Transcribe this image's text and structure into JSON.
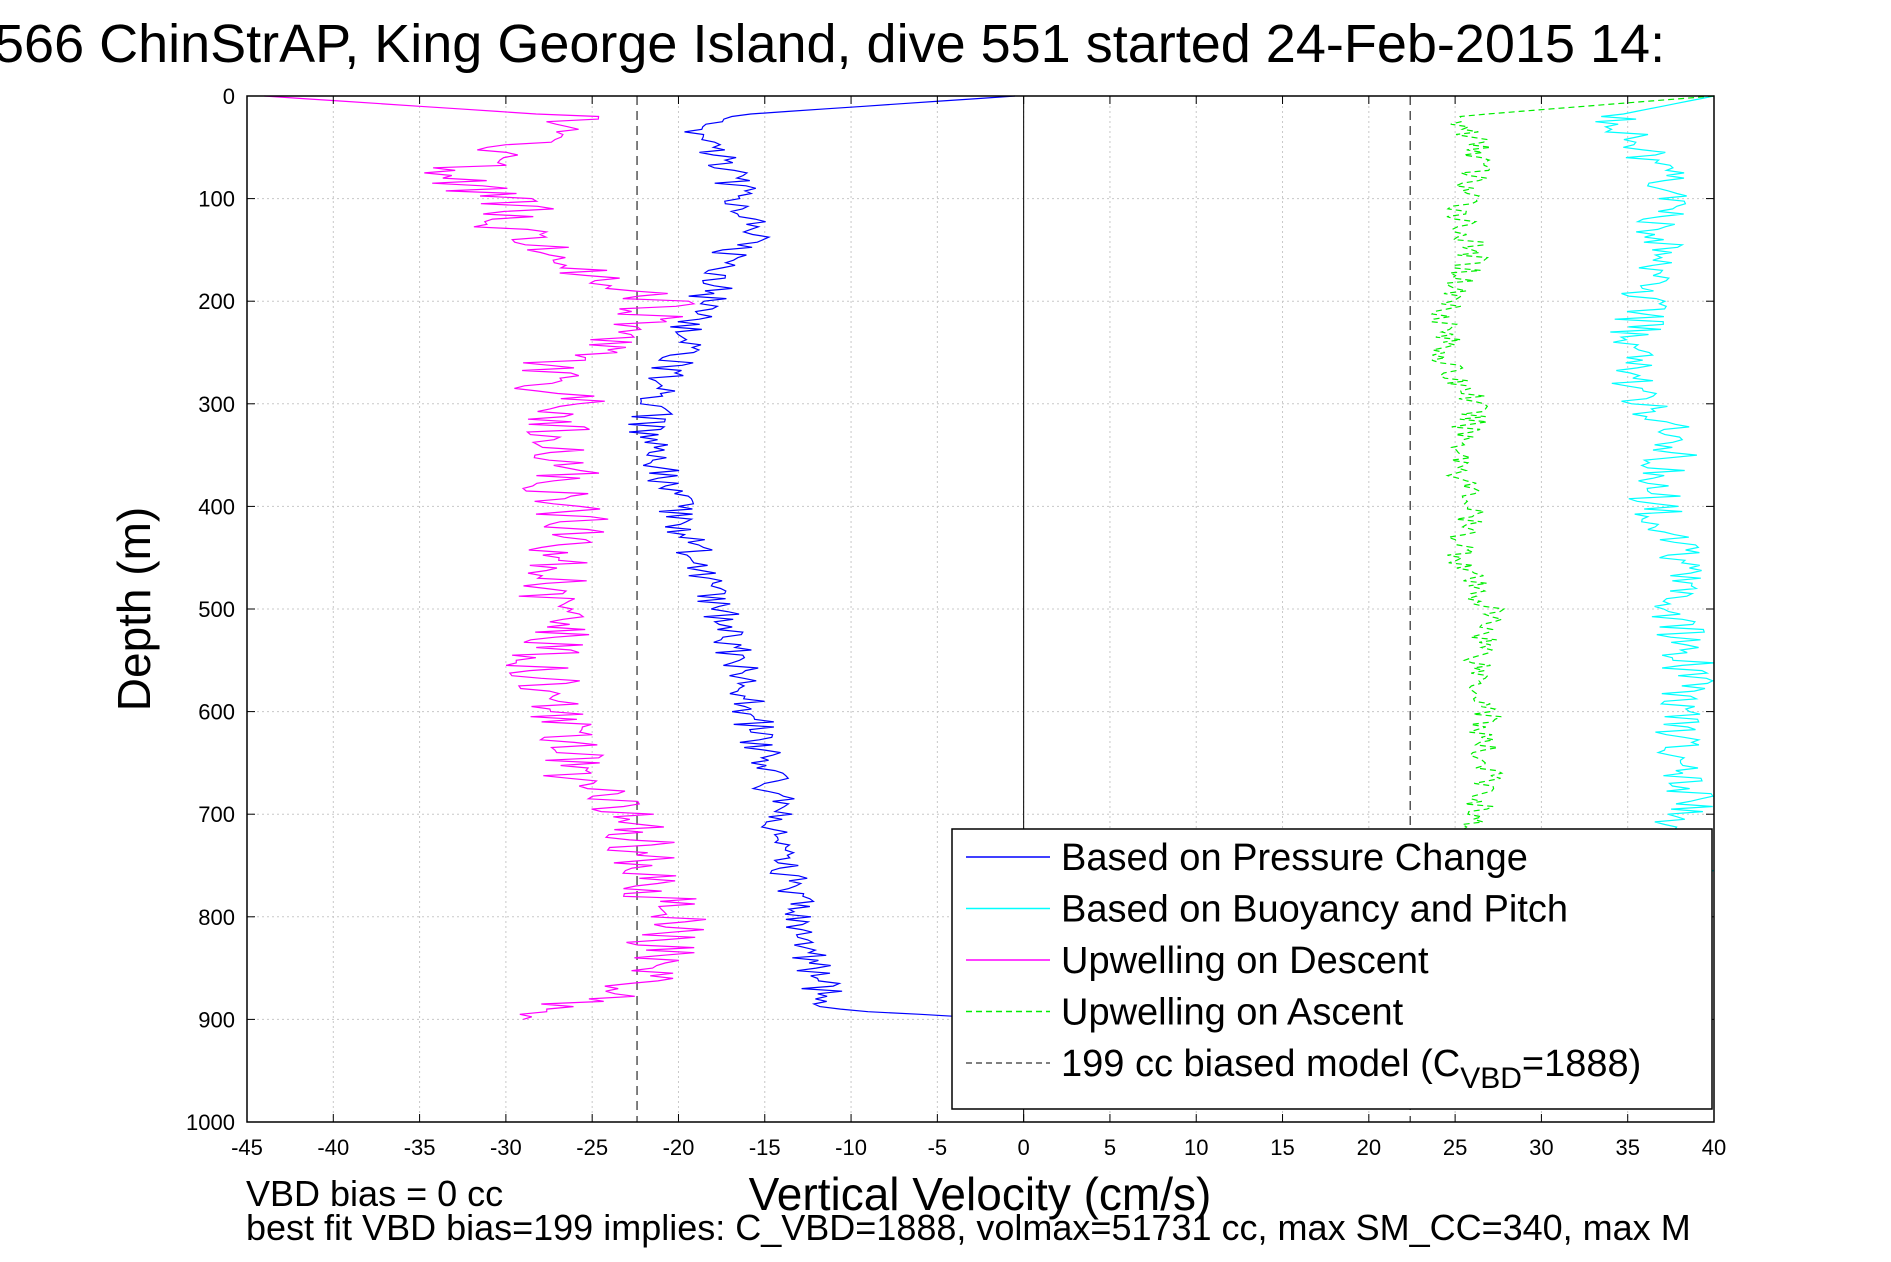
{
  "chart_data": {
    "type": "line",
    "title": "566 ChinStrAP, King George Island, dive 551 started 24-Feb-2015 14:",
    "xlabel": "Vertical Velocity (cm/s)",
    "ylabel": "Depth (m)",
    "xlim": [
      -45,
      40
    ],
    "ylim": [
      0,
      1000
    ],
    "y_reversed": true,
    "grid": true,
    "x_ticks": [
      -45,
      -40,
      -35,
      -30,
      -25,
      -20,
      -15,
      -10,
      -5,
      0,
      5,
      10,
      15,
      20,
      25,
      30,
      35,
      40
    ],
    "y_ticks": [
      0,
      100,
      200,
      300,
      400,
      500,
      600,
      700,
      800,
      900,
      1000
    ],
    "legend_position": "bottom-right",
    "series": [
      {
        "name": "Based on Pressure Change",
        "color": "#0000ff",
        "style": "solid",
        "x": [
          -0.5,
          -18,
          -19,
          -17.5,
          -17,
          -16.5,
          -16,
          -15,
          -17,
          -17.5,
          -18,
          -19,
          -19.5,
          -20,
          -20.5,
          -21,
          -21.5,
          -22,
          -21.5,
          -21,
          -20.5,
          -20,
          -19.5,
          -19,
          -18.5,
          -18,
          -17.5,
          -17,
          -16.5,
          -16,
          -15.5,
          -15,
          -14.5,
          -14,
          -14,
          -13.5,
          -13.5,
          -13,
          -13,
          -12.5,
          -12,
          -11.5,
          -11,
          -1
        ],
        "y": [
          0,
          20,
          40,
          60,
          80,
          95,
          110,
          130,
          150,
          170,
          190,
          210,
          230,
          250,
          270,
          290,
          310,
          330,
          350,
          370,
          390,
          410,
          430,
          450,
          470,
          490,
          510,
          530,
          560,
          590,
          620,
          650,
          680,
          710,
          740,
          760,
          780,
          800,
          820,
          840,
          860,
          875,
          890,
          900
        ]
      },
      {
        "name": "Based on Buoyancy and Pitch",
        "color": "#00ffff",
        "style": "solid",
        "x": [
          40,
          34,
          36,
          37,
          37.5,
          37,
          36.5,
          36,
          35.5,
          35.5,
          35,
          36,
          37.5,
          37.5,
          36.5,
          36.5,
          37,
          38,
          38.5,
          38,
          38,
          38.5,
          38.5,
          38,
          38,
          38.5,
          38.5,
          38,
          38.5,
          39
        ],
        "y": [
          0,
          20,
          50,
          80,
          100,
          130,
          160,
          190,
          220,
          250,
          280,
          300,
          320,
          350,
          380,
          400,
          420,
          440,
          460,
          490,
          520,
          550,
          580,
          610,
          640,
          670,
          690,
          710,
          740,
          760
        ]
      },
      {
        "name": "Upwelling on Descent",
        "color": "#ff00ff",
        "style": "solid",
        "x": [
          -44,
          -26,
          -28,
          -31,
          -33,
          -32,
          -29,
          -30,
          -27,
          -25,
          -23,
          -21,
          -22,
          -24,
          -27,
          -28,
          -26,
          -27,
          -28,
          -26,
          -27,
          -26.5,
          -26,
          -27,
          -26.5,
          -27,
          -28,
          -27,
          -27.5,
          -28,
          -27,
          -26.5,
          -27,
          -26,
          -26,
          -24.5,
          -23.5,
          -22,
          -22,
          -21.5,
          -21,
          -20.5,
          -21,
          -21,
          -29
        ],
        "y": [
          0,
          20,
          40,
          60,
          75,
          90,
          110,
          130,
          150,
          170,
          190,
          200,
          220,
          240,
          260,
          280,
          300,
          320,
          340,
          360,
          380,
          400,
          420,
          440,
          460,
          480,
          500,
          520,
          540,
          560,
          580,
          600,
          620,
          640,
          660,
          680,
          700,
          720,
          740,
          760,
          780,
          800,
          830,
          860,
          900
        ]
      },
      {
        "name": "Upwelling on Ascent",
        "color": "#00ee00",
        "style": "dashed",
        "x": [
          40,
          25,
          26,
          26.5,
          26,
          25.5,
          25.5,
          26,
          25,
          24.5,
          24.5,
          24.5,
          26,
          26,
          25.5,
          25.5,
          26,
          25.5,
          25.5,
          26,
          27,
          27,
          26.5,
          26.5,
          27,
          26.5,
          26.5,
          27,
          26.5,
          26.5,
          25.5
        ],
        "y": [
          0,
          20,
          40,
          60,
          80,
          100,
          130,
          160,
          190,
          220,
          250,
          270,
          290,
          310,
          340,
          370,
          400,
          420,
          450,
          480,
          500,
          520,
          550,
          580,
          600,
          620,
          640,
          660,
          680,
          700,
          715
        ]
      },
      {
        "name": "199 cc biased model (C_VBD=1888)",
        "color": "#555555",
        "style": "dashed",
        "x": [
          -22.4,
          -22.4
        ],
        "y": [
          0,
          1000
        ]
      }
    ],
    "model_lines_x": [
      -22.4,
      22.4
    ],
    "zero_line_x": 0,
    "legend": [
      {
        "label": "Based on Pressure Change",
        "color": "#0000ff",
        "style": "solid"
      },
      {
        "label": "Based on Buoyancy and Pitch",
        "color": "#00ffff",
        "style": "solid"
      },
      {
        "label": "Upwelling on Descent",
        "color": "#ff00ff",
        "style": "solid"
      },
      {
        "label": "Upwelling on Ascent",
        "color": "#00ee00",
        "style": "dashed"
      },
      {
        "label": "199 cc biased model (C",
        "sub": "VBD",
        "tail": "=1888)",
        "color": "#555555",
        "style": "dashed"
      }
    ],
    "annotations": [
      "VBD bias = 0 cc",
      "best fit VBD bias=199 implies: C_VBD=1888, volmax=51731 cc, max SM_CC=340, max M"
    ]
  }
}
